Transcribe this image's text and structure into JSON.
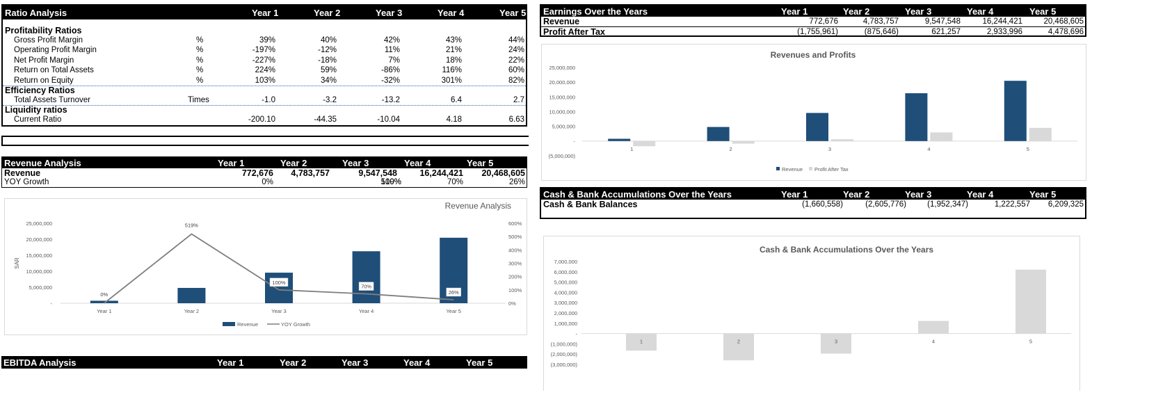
{
  "ratio": {
    "title": "Ratio Analysis",
    "years": [
      "Year 1",
      "Year 2",
      "Year 3",
      "Year 4",
      "Year 5"
    ],
    "sections": [
      {
        "name": "Profitability Ratios",
        "rows": [
          {
            "label": "Gross Profit Margin",
            "unit": "%",
            "values": [
              "39%",
              "40%",
              "42%",
              "43%",
              "44%"
            ]
          },
          {
            "label": "Operating Profit Margin",
            "unit": "%",
            "values": [
              "-197%",
              "-12%",
              "11%",
              "21%",
              "24%"
            ]
          },
          {
            "label": "Net Profit Margin",
            "unit": "%",
            "values": [
              "-227%",
              "-18%",
              "7%",
              "18%",
              "22%"
            ]
          },
          {
            "label": "Return on Total Assets",
            "unit": "%",
            "values": [
              "224%",
              "59%",
              "-86%",
              "116%",
              "60%"
            ]
          },
          {
            "label": "Return on Equity",
            "unit": "%",
            "values": [
              "103%",
              "34%",
              "-32%",
              "301%",
              "82%"
            ]
          }
        ]
      },
      {
        "name": "Efficiency Ratios",
        "rows": [
          {
            "label": "Total Assets Turnover",
            "unit": "Times",
            "values": [
              "-1.0",
              "-3.2",
              "-13.2",
              "6.4",
              "2.7"
            ]
          }
        ]
      },
      {
        "name": "Liquidity ratios",
        "rows": [
          {
            "label": "Current Ratio",
            "unit": "",
            "values": [
              "-200.10",
              "-44.35",
              "-10.04",
              "4.18",
              "6.63"
            ]
          }
        ]
      }
    ]
  },
  "revenue_table": {
    "title": "Revenue Analysis",
    "years": [
      "Year 1",
      "Year 2",
      "Year 3",
      "Year 4",
      "Year 5"
    ],
    "rows": [
      {
        "label": "Revenue",
        "values": [
          "772,676",
          "4,783,757",
          "9,547,548",
          "16,244,421",
          "20,468,605"
        ]
      },
      {
        "label": "YOY Growth",
        "values": [
          "0%",
          "519%",
          "100%",
          "70%",
          "26%"
        ]
      }
    ]
  },
  "ebitda_table": {
    "title": "EBITDA Analysis",
    "years": [
      "Year 1",
      "Year 2",
      "Year 3",
      "Year 4",
      "Year 5"
    ]
  },
  "earnings_table": {
    "title": "Earnings Over the Years",
    "years": [
      "Year 1",
      "Year 2",
      "Year 3",
      "Year 4",
      "Year 5"
    ],
    "rows": [
      {
        "label": "Revenue",
        "values": [
          "772,676",
          "4,783,757",
          "9,547,548",
          "16,244,421",
          "20,468,605"
        ]
      },
      {
        "label": "Profit After Tax",
        "values": [
          "(1,755,961)",
          "(875,646)",
          "621,257",
          "2,933,996",
          "4,478,696"
        ]
      }
    ]
  },
  "cash_table": {
    "title": "Cash & Bank Accumulations Over the Years",
    "years": [
      "Year 1",
      "Year 2",
      "Year 3",
      "Year 4",
      "Year 5"
    ],
    "rows": [
      {
        "label": "Cash & Bank Balances",
        "values": [
          "(1,660,558)",
          "(2,605,776)",
          "(1,952,347)",
          "1,222,557",
          "6,209,325"
        ]
      }
    ]
  },
  "colors": {
    "navy": "#1f4e79",
    "gray": "#d9d9d9",
    "line": "#7f7f7f"
  },
  "chart_data": [
    {
      "id": "revenue-analysis",
      "type": "bar",
      "title": "Revenue Analysis",
      "categories": [
        "Year 1",
        "Year 2",
        "Year 3",
        "Year 4",
        "Year 5"
      ],
      "series": [
        {
          "name": "Revenue",
          "type": "bar",
          "values": [
            772676,
            4783757,
            9547548,
            16244421,
            20468605
          ]
        },
        {
          "name": "YOY Growth",
          "type": "line",
          "axis": "right",
          "values": [
            0,
            519,
            100,
            70,
            26
          ]
        }
      ],
      "ylabel": "SAR",
      "ylim": [
        0,
        25000000
      ],
      "yticks": [
        "-",
        "5,000,000",
        "10,000,000",
        "15,000,000",
        "20,000,000",
        "25,000,000"
      ],
      "y2lim": [
        0,
        600
      ],
      "y2ticks": [
        "0%",
        "100%",
        "200%",
        "300%",
        "400%",
        "500%",
        "600%"
      ],
      "data_labels": [
        "0%",
        "519%",
        "100%",
        "70%",
        "26%"
      ],
      "legend": "bottom"
    },
    {
      "id": "revenues-profits",
      "type": "bar",
      "title": "Revenues and Profits",
      "categories": [
        "1",
        "2",
        "3",
        "4",
        "5"
      ],
      "series": [
        {
          "name": "Revenue",
          "values": [
            772676,
            4783757,
            9547548,
            16244421,
            20468605
          ]
        },
        {
          "name": "Profit After Tax",
          "values": [
            -1755961,
            -875646,
            621257,
            2933996,
            4478696
          ]
        }
      ],
      "ylim": [
        -5000000,
        25000000
      ],
      "yticks": [
        "(5,000,000)",
        "-",
        "5,000,000",
        "10,000,000",
        "15,000,000",
        "20,000,000",
        "25,000,000"
      ],
      "legend": "bottom"
    },
    {
      "id": "cash-accumulations",
      "type": "bar",
      "title": "Cash & Bank Accumulations Over the Years",
      "categories": [
        "1",
        "2",
        "3",
        "4",
        "5"
      ],
      "series": [
        {
          "name": "Cash & Bank Balances",
          "values": [
            -1660558,
            -2605776,
            -1952347,
            1222557,
            6209325
          ]
        }
      ],
      "ylim": [
        -3000000,
        7000000
      ],
      "yticks": [
        "(3,000,000)",
        "(2,000,000)",
        "(1,000,000)",
        "-",
        "1,000,000",
        "2,000,000",
        "3,000,000",
        "4,000,000",
        "5,000,000",
        "6,000,000",
        "7,000,000"
      ]
    }
  ]
}
